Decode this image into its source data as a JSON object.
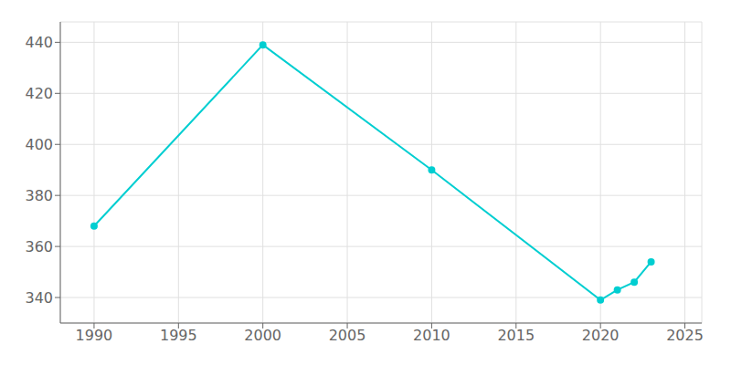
{
  "chart_data": {
    "type": "line",
    "x": [
      1990,
      2000,
      2010,
      2020,
      2021,
      2022,
      2023
    ],
    "values": [
      368,
      439,
      390,
      339,
      343,
      346,
      354
    ],
    "color": "#00CED1",
    "marker": "o",
    "xlim": [
      1988,
      2026
    ],
    "ylim": [
      330,
      448
    ],
    "xticks": [
      1990,
      1995,
      2000,
      2005,
      2010,
      2015,
      2020,
      2025
    ],
    "yticks": [
      340,
      360,
      380,
      400,
      420,
      440
    ],
    "grid": true
  }
}
